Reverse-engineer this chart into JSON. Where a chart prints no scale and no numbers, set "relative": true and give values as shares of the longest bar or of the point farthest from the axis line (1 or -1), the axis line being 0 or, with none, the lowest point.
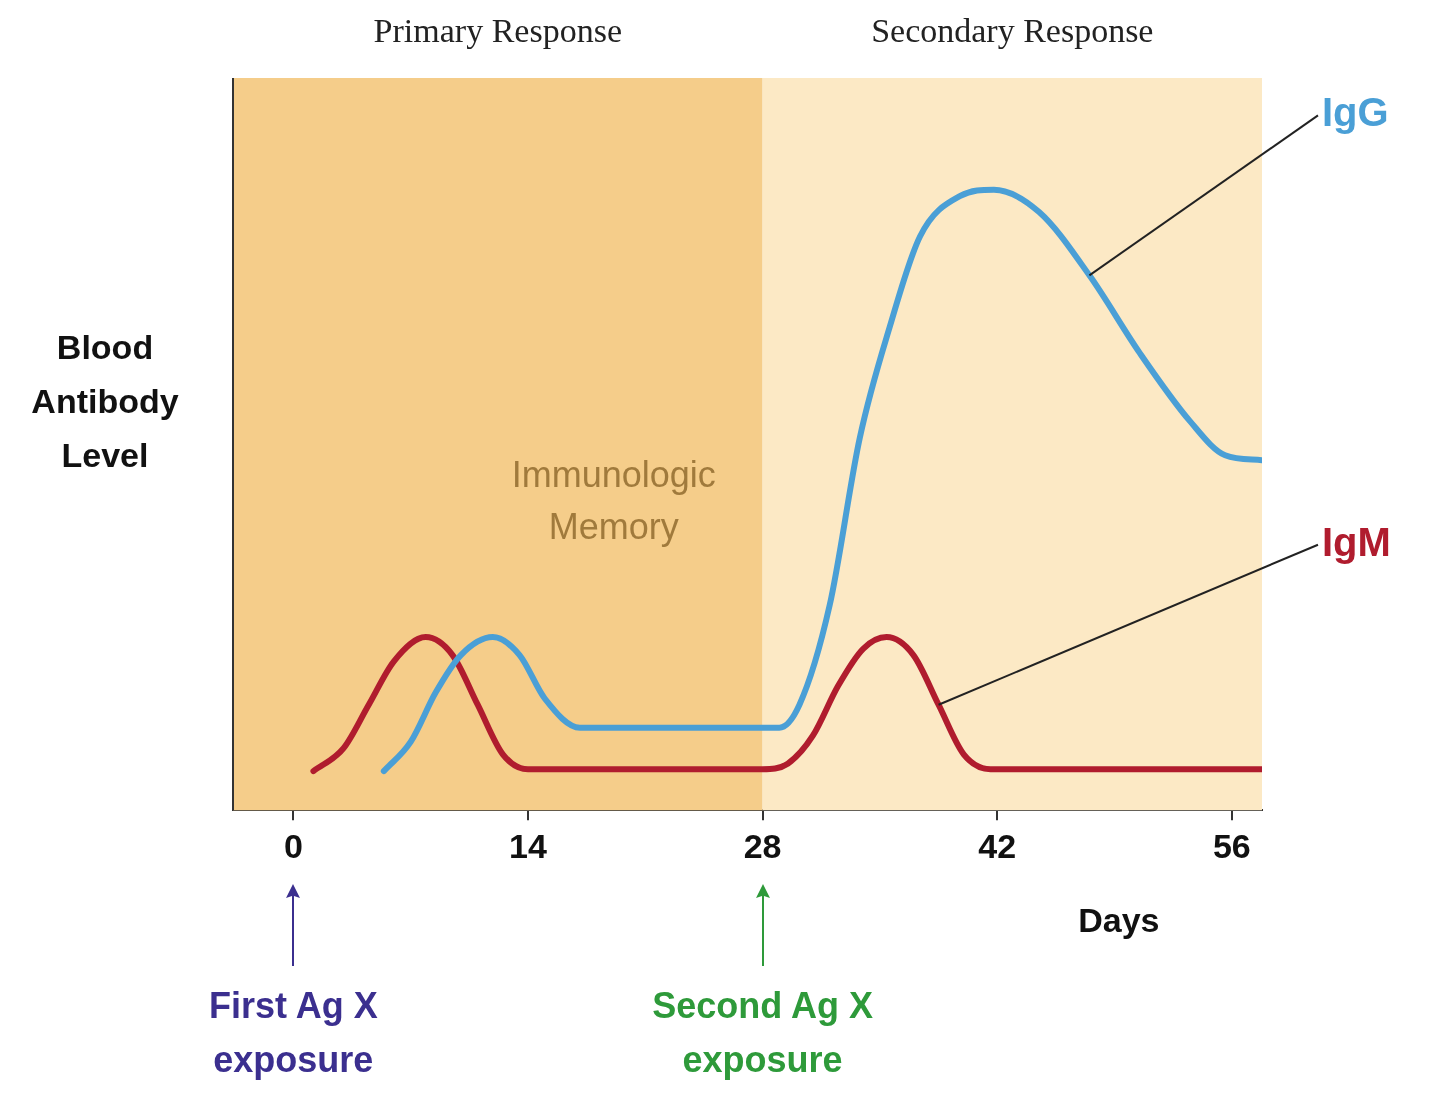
{
  "chart_data": {
    "type": "line",
    "relative": true,
    "ylabel": "Blood\nAntibody\nLevel",
    "xlabel": "Days",
    "xlim": [
      -3.6,
      57.8
    ],
    "xticks": [
      0,
      14,
      28,
      42,
      56
    ],
    "grid": false,
    "legend": false,
    "marker": "none",
    "line_style": "solid",
    "bands": [
      {
        "axis": "x",
        "from": -3.6,
        "to": 28,
        "label": "Primary Response",
        "color": "#f5cd8a"
      },
      {
        "axis": "x",
        "from": 28,
        "to": 57.8,
        "label": "Secondary Response",
        "color": "#fce9c5"
      }
    ],
    "annotations": [
      "Immunologic\nMemory",
      "First Ag X\nexposure",
      "Second Ag X\nexposure"
    ],
    "series": [
      {
        "name": "IgG",
        "color": "#4a9fd6",
        "x": [
          5.4,
          7,
          8.5,
          10,
          11.9,
          13.5,
          15,
          17.1,
          29,
          30.2,
          32,
          33.8,
          35.6,
          37.4,
          39.8,
          41.8,
          44.5,
          47.5,
          50.5,
          53.5,
          55.6,
          57.8
        ],
        "values": [
          0.063,
          0.11,
          0.19,
          0.25,
          0.279,
          0.25,
          0.18,
          0.133,
          0.133,
          0.17,
          0.33,
          0.6,
          0.78,
          0.925,
          0.99,
          1,
          0.964,
          0.862,
          0.737,
          0.627,
          0.572,
          0.564
        ]
      },
      {
        "name": "IgM",
        "color": "#b01c2e",
        "x": [
          1.2,
          3,
          4.5,
          6,
          7.9,
          9.5,
          11,
          12.5,
          14,
          28,
          29.5,
          31,
          32.5,
          34,
          35.4,
          37,
          38.5,
          40,
          41.6,
          57.8
        ],
        "values": [
          0.063,
          0.1,
          0.17,
          0.24,
          0.279,
          0.25,
          0.17,
          0.09,
          0.066,
          0.066,
          0.075,
          0.12,
          0.2,
          0.26,
          0.279,
          0.25,
          0.17,
          0.09,
          0.066,
          0.066
        ]
      }
    ]
  }
}
